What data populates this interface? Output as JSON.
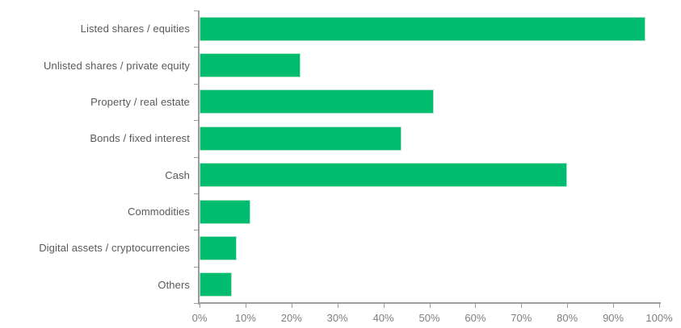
{
  "chart_data": {
    "type": "bar",
    "orientation": "horizontal",
    "title": "",
    "categories": [
      "Listed shares / equities",
      "Unlisted shares / private equity",
      "Property / real estate",
      "Bonds / fixed interest",
      "Cash",
      "Commodities",
      "Digital assets / cryptocurrencies",
      "Others"
    ],
    "values": [
      97,
      22,
      51,
      44,
      80,
      11,
      8,
      7
    ],
    "unit": "%",
    "xlabel": "",
    "ylabel": "",
    "xlim": [
      0,
      100
    ],
    "x_ticks": [
      "0%",
      "10%",
      "20%",
      "30%",
      "40%",
      "50%",
      "60%",
      "70%",
      "80%",
      "90%",
      "100%"
    ],
    "grid": false,
    "legend": null,
    "colors": {
      "bar_fill": "#00bc6e",
      "bar_edge": "#a9e6c8",
      "axis_line": "#9e9e9e",
      "category_label": "#595959",
      "tick_label": "#7f7f7f",
      "background": "#ffffff"
    }
  }
}
